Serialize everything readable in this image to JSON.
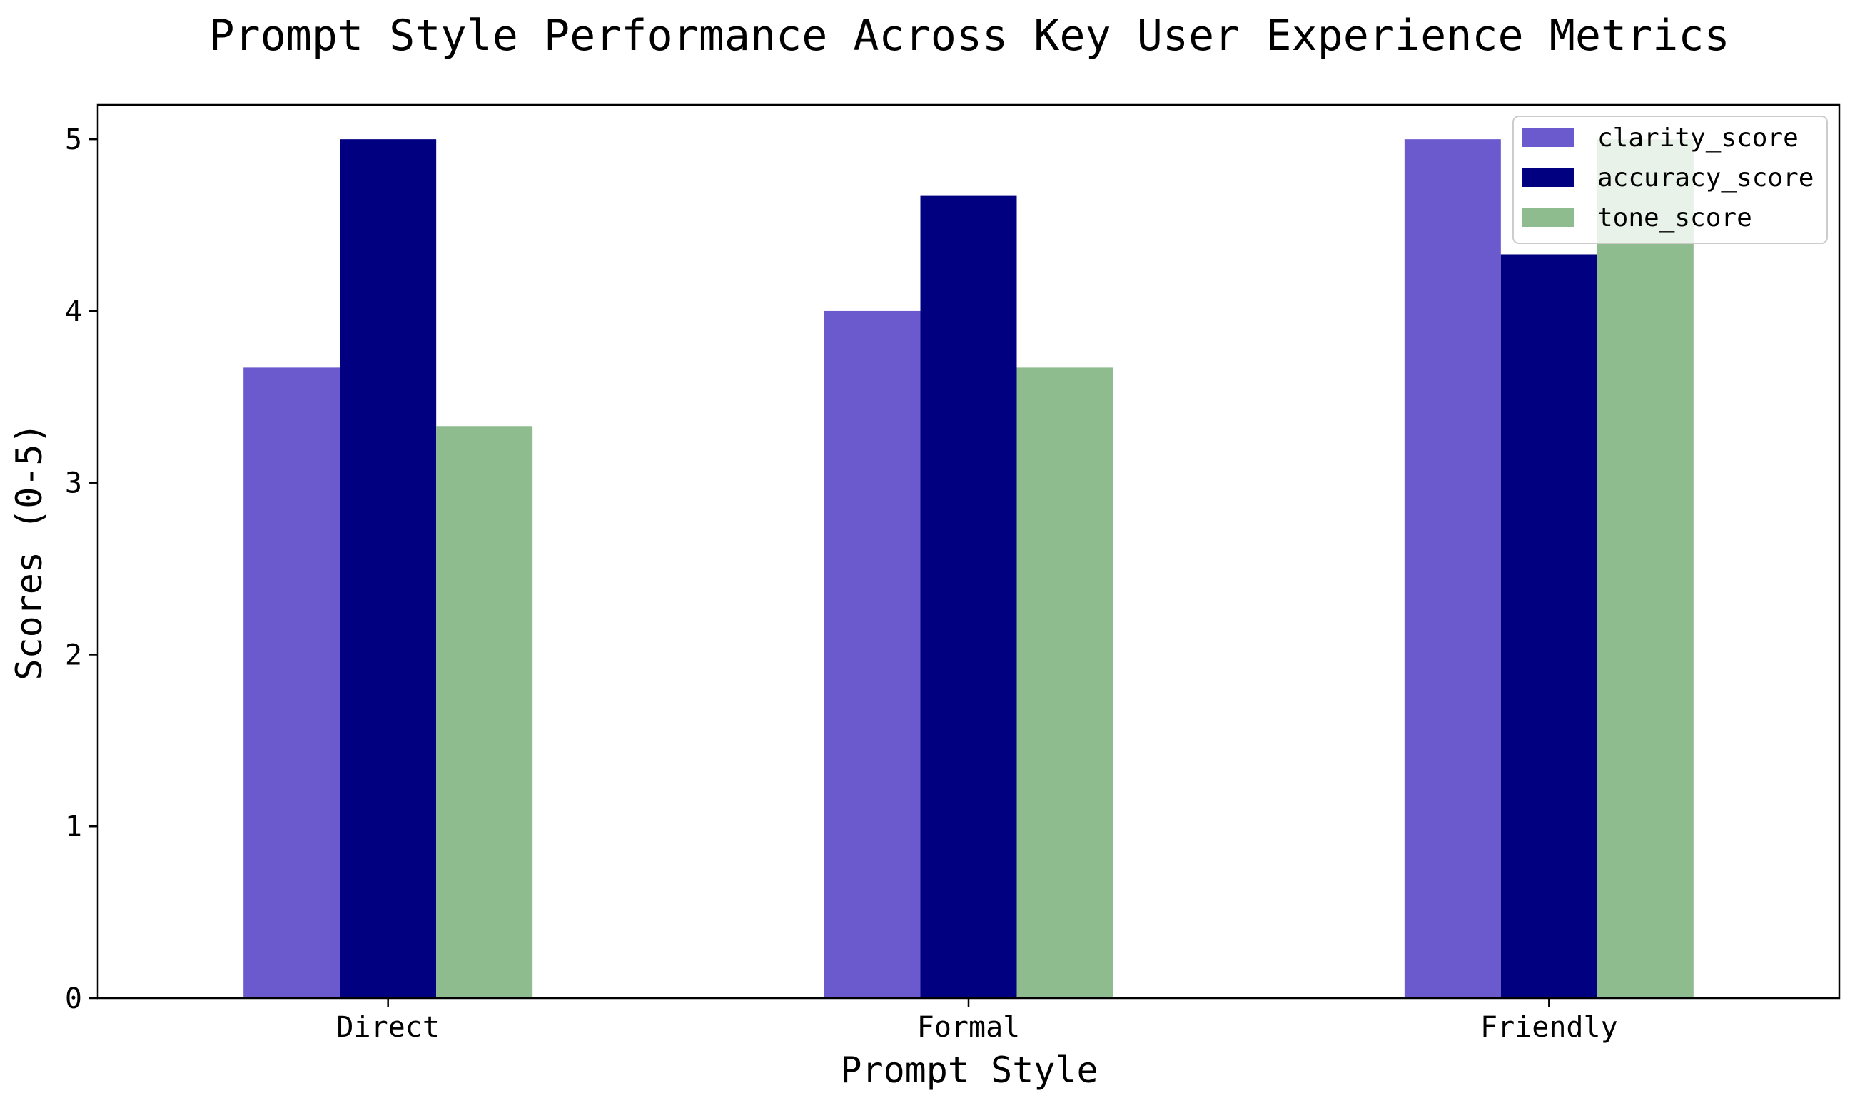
{
  "chart_data": {
    "type": "bar",
    "title": "Prompt Style Performance Across Key User Experience Metrics",
    "xlabel": "Prompt Style",
    "ylabel": "Scores (0-5)",
    "categories": [
      "Direct",
      "Formal",
      "Friendly"
    ],
    "series": [
      {
        "name": "clarity_score",
        "color": "#6A5ACD",
        "values": [
          3.67,
          4.0,
          5.0
        ]
      },
      {
        "name": "accuracy_score",
        "color": "#000080",
        "values": [
          5.0,
          4.67,
          4.33
        ]
      },
      {
        "name": "tone_score",
        "color": "#8FBC8F",
        "values": [
          3.33,
          3.67,
          5.0
        ]
      }
    ],
    "ylim": [
      0,
      5.2
    ],
    "yticks": [
      0,
      1,
      2,
      3,
      4,
      5
    ],
    "grid": false,
    "legend_position": "top-right"
  }
}
